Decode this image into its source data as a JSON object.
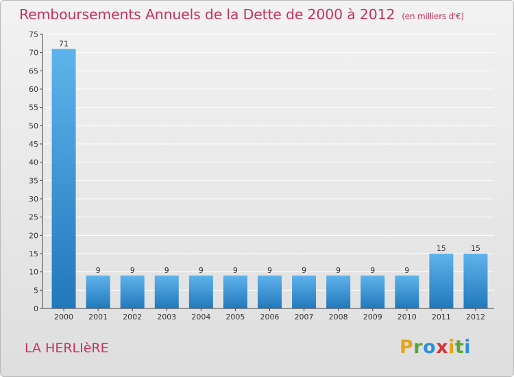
{
  "title": "Remboursements Annuels de la Dette de 2000 à 2012",
  "subtitle": "(en milliers d'€)",
  "place": "LA HERLIèRE",
  "logo_text": "Proxiti",
  "colors": {
    "title": "#c8325a",
    "bar_light": "#5fb3ec",
    "bar_dark": "#2178bb"
  },
  "chart_data": {
    "type": "bar",
    "title": "Remboursements Annuels de la Dette de 2000 à 2012",
    "subtitle": "(en milliers d'€)",
    "categories": [
      "2000",
      "2001",
      "2002",
      "2003",
      "2004",
      "2005",
      "2006",
      "2007",
      "2008",
      "2009",
      "2010",
      "2011",
      "2012"
    ],
    "values": [
      71,
      9,
      9,
      9,
      9,
      9,
      9,
      9,
      9,
      9,
      9,
      15,
      15
    ],
    "ylim": [
      0,
      75
    ],
    "yticks": [
      0,
      5,
      10,
      15,
      20,
      25,
      30,
      35,
      40,
      45,
      50,
      55,
      60,
      65,
      70,
      75
    ],
    "grid": true,
    "data_labels": true
  }
}
